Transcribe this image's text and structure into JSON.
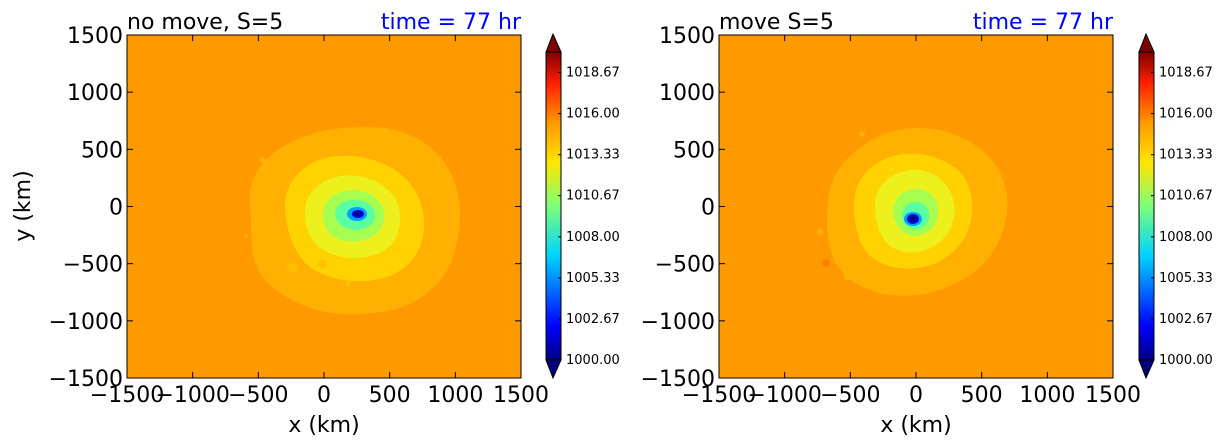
{
  "chart_data": [
    {
      "type": "heatmap",
      "title_left": "no move, S=5",
      "title_right": "time = 77 hr",
      "xlabel": "x (km)",
      "ylabel": "y (km)",
      "xlim": [
        -1500,
        1500
      ],
      "ylim": [
        -1500,
        1500
      ],
      "xticks": [
        -1500,
        -1000,
        -500,
        0,
        500,
        1000,
        1500
      ],
      "yticks": [
        -1500,
        -1000,
        -500,
        0,
        500,
        1000,
        1500
      ],
      "xtick_labels": [
        "−1500",
        "−1000",
        "−500",
        "0",
        "500",
        "1000",
        "1500"
      ],
      "ytick_labels": [
        "−1500",
        "−1000",
        "−500",
        "0",
        "500",
        "1000",
        "1500"
      ],
      "center": [
        260,
        -70
      ],
      "low_center_value": 1000.0,
      "colorbar": {
        "min": 1000.0,
        "max": 1020.0,
        "extend": "both",
        "tick_values": [
          1000.0,
          1002.67,
          1005.33,
          1008.0,
          1010.67,
          1013.33,
          1016.0,
          1018.67
        ],
        "tick_labels": [
          "1000.00",
          "1002.67",
          "1005.33",
          "1008.00",
          "1010.67",
          "1013.33",
          "1016.00",
          "1018.67"
        ]
      }
    },
    {
      "type": "heatmap",
      "title_left": "move S=5",
      "title_right": "time = 77 hr",
      "xlabel": "x (km)",
      "ylabel": "",
      "xlim": [
        -1500,
        1500
      ],
      "ylim": [
        -1500,
        1500
      ],
      "xticks": [
        -1500,
        -1000,
        -500,
        0,
        500,
        1000,
        1500
      ],
      "yticks": [
        -1500,
        -1000,
        -500,
        0,
        500,
        1000,
        1500
      ],
      "xtick_labels": [
        "−1500",
        "−1000",
        "−500",
        "0",
        "500",
        "1000",
        "1500"
      ],
      "ytick_labels": [
        "−1500",
        "−1000",
        "−500",
        "0",
        "500",
        "1000",
        "1500"
      ],
      "center": [
        -20,
        -110
      ],
      "low_center_value": 1000.0,
      "colorbar": {
        "min": 1000.0,
        "max": 1020.0,
        "extend": "both",
        "tick_values": [
          1000.0,
          1002.67,
          1005.33,
          1008.0,
          1010.67,
          1013.33,
          1016.0,
          1018.67
        ],
        "tick_labels": [
          "1000.00",
          "1002.67",
          "1005.33",
          "1008.00",
          "1010.67",
          "1013.33",
          "1016.00",
          "1018.67"
        ]
      }
    }
  ],
  "colors": {
    "background_field": "#ff9900",
    "title_right": "#0000ff",
    "axis": "#000000"
  }
}
